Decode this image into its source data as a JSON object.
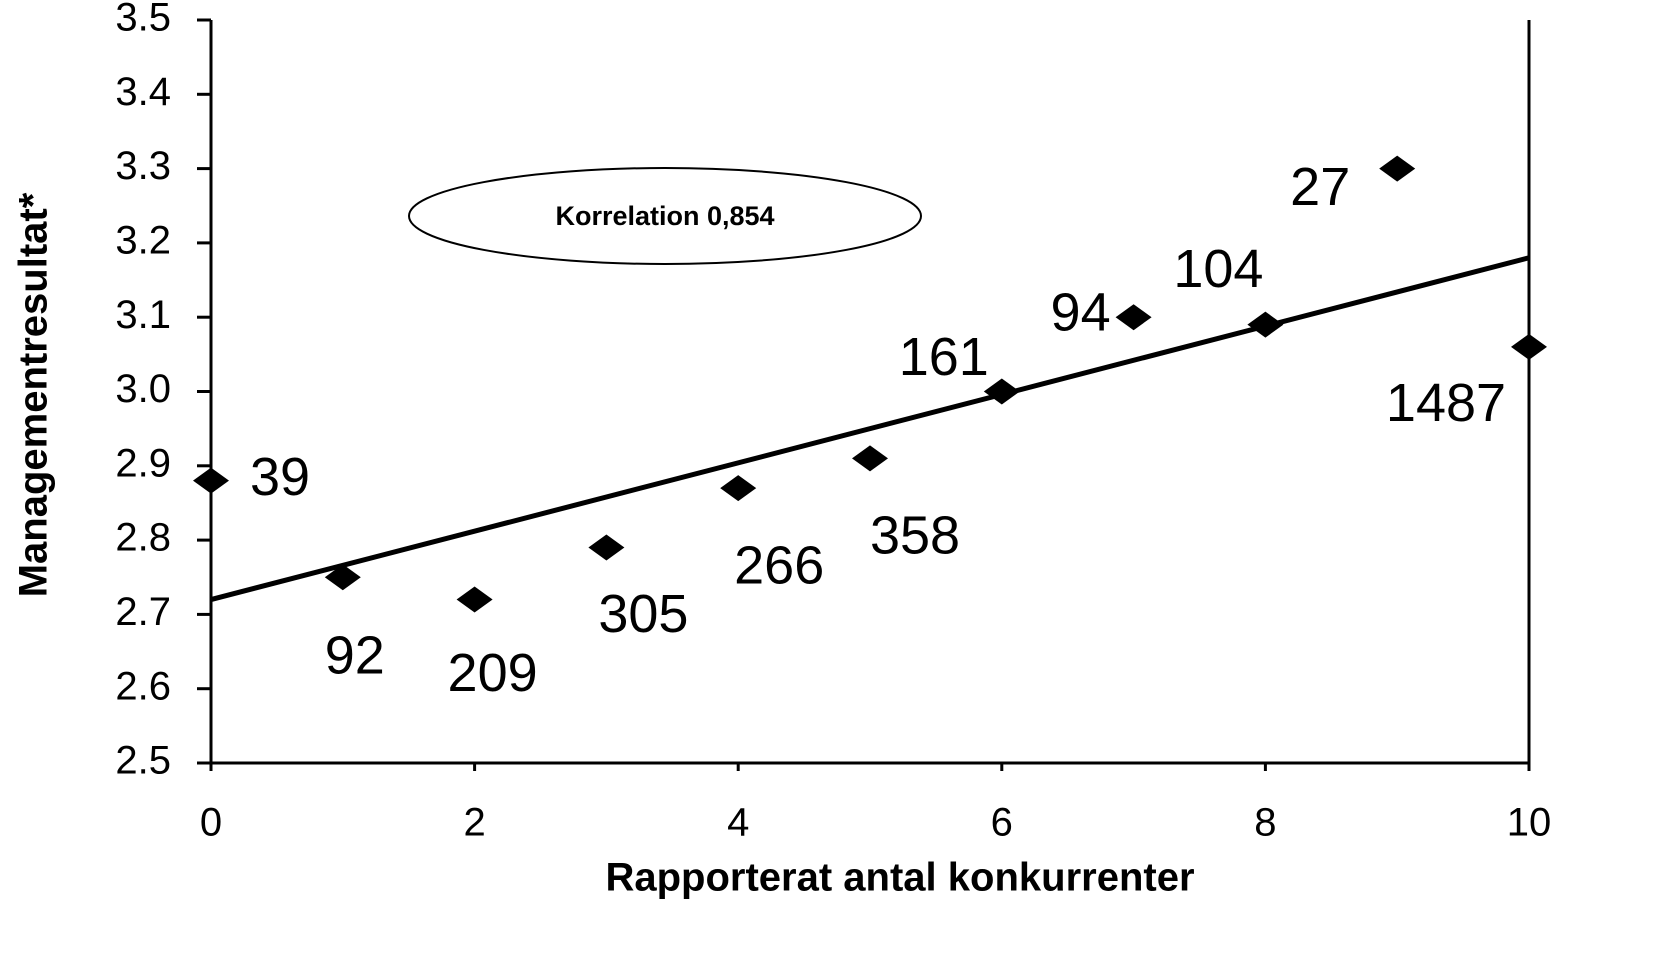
{
  "chart_data": {
    "type": "scatter",
    "x_label": "Rapporterat antal konkurrenter",
    "y_label": "Managementresultat*",
    "annotation": "Korrelation 0,854",
    "x": [
      0,
      1,
      2,
      3,
      4,
      5,
      6,
      7,
      8,
      9,
      10
    ],
    "values": [
      2.88,
      2.75,
      2.72,
      2.79,
      2.87,
      2.91,
      3.0,
      3.1,
      3.09,
      3.3,
      3.06
    ],
    "point_labels": [
      39,
      92,
      209,
      305,
      266,
      358,
      161,
      94,
      104,
      27,
      1487
    ],
    "color": "#000000",
    "trendline": {
      "x": [
        0,
        10
      ],
      "y": [
        2.72,
        3.18
      ]
    },
    "xlim": [
      0,
      10
    ],
    "xticks": [
      0,
      2,
      4,
      6,
      8,
      10
    ],
    "ylim": [
      2.5,
      3.5
    ],
    "yticks": [
      2.5,
      2.6,
      2.7,
      2.8,
      2.9,
      {
        "value": 3,
        "label": "3.0"
      },
      3.1,
      3.2,
      3.3,
      3.4,
      3.5
    ]
  }
}
